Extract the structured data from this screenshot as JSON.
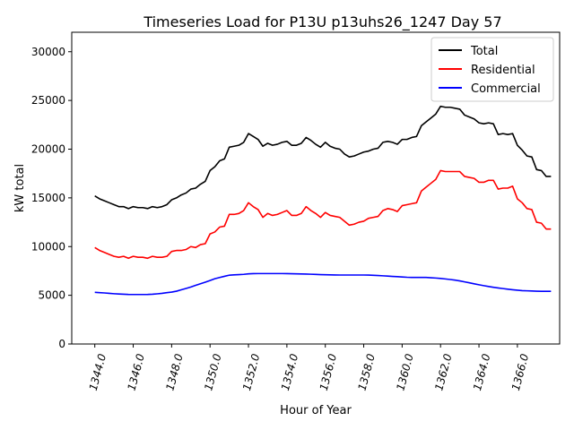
{
  "chart_data": {
    "type": "line",
    "title": "Timeseries Load for P13U p13uhs26_1247  Day 57",
    "xlabel": "Hour of Year",
    "ylabel": "kW total",
    "xlim": [
      1342.8,
      1368.2
    ],
    "ylim": [
      0,
      32000
    ],
    "xticks": [
      1344,
      1346,
      1348,
      1350,
      1352,
      1354,
      1356,
      1358,
      1360,
      1362,
      1364,
      1366
    ],
    "xtick_labels": [
      "1344.0",
      "1346.0",
      "1348.0",
      "1350.0",
      "1352.0",
      "1354.0",
      "1356.0",
      "1358.0",
      "1360.0",
      "1362.0",
      "1364.0",
      "1366.0"
    ],
    "yticks": [
      0,
      5000,
      10000,
      15000,
      20000,
      25000,
      30000
    ],
    "ytick_labels": [
      "0",
      "5000",
      "10000",
      "15000",
      "20000",
      "25000",
      "30000"
    ],
    "grid": false,
    "legend_position": "top-right",
    "x": [
      1344.0,
      1344.25,
      1344.5,
      1344.75,
      1345.0,
      1345.25,
      1345.5,
      1345.75,
      1346.0,
      1346.25,
      1346.5,
      1346.75,
      1347.0,
      1347.25,
      1347.5,
      1347.75,
      1348.0,
      1348.25,
      1348.5,
      1348.75,
      1349.0,
      1349.25,
      1349.5,
      1349.75,
      1350.0,
      1350.25,
      1350.5,
      1350.75,
      1351.0,
      1351.25,
      1351.5,
      1351.75,
      1352.0,
      1352.25,
      1352.5,
      1352.75,
      1353.0,
      1353.25,
      1353.5,
      1353.75,
      1354.0,
      1354.25,
      1354.5,
      1354.75,
      1355.0,
      1355.25,
      1355.5,
      1355.75,
      1356.0,
      1356.25,
      1356.5,
      1356.75,
      1357.0,
      1357.25,
      1357.5,
      1357.75,
      1358.0,
      1358.25,
      1358.5,
      1358.75,
      1359.0,
      1359.25,
      1359.5,
      1359.75,
      1360.0,
      1360.25,
      1360.5,
      1360.75,
      1361.0,
      1361.25,
      1361.5,
      1361.75,
      1362.0,
      1362.25,
      1362.5,
      1362.75,
      1363.0,
      1363.25,
      1363.5,
      1363.75,
      1364.0,
      1364.25,
      1364.5,
      1364.75,
      1365.0,
      1365.25,
      1365.5,
      1365.75,
      1366.0,
      1366.25,
      1366.5,
      1366.75,
      1367.0,
      1367.25,
      1367.5,
      1367.75
    ],
    "series": [
      {
        "name": "Total",
        "color": "#000000",
        "values": [
          15200,
          14900,
          14700,
          14500,
          14300,
          14100,
          14100,
          13900,
          14100,
          14000,
          14000,
          13900,
          14100,
          14000,
          14100,
          14300,
          14800,
          15000,
          15300,
          15500,
          15900,
          16000,
          16400,
          16700,
          17800,
          18200,
          18800,
          19000,
          20200,
          20300,
          20400,
          20700,
          21600,
          21300,
          21000,
          20300,
          20600,
          20400,
          20500,
          20700,
          20800,
          20400,
          20400,
          20600,
          21200,
          20900,
          20500,
          20200,
          20700,
          20300,
          20100,
          20000,
          19500,
          19200,
          19300,
          19500,
          19700,
          19800,
          20000,
          20100,
          20700,
          20800,
          20700,
          20500,
          21000,
          21000,
          21200,
          21300,
          22400,
          22800,
          23200,
          23600,
          24400,
          24300,
          24300,
          24200,
          24100,
          23500,
          23300,
          23100,
          22700,
          22600,
          22700,
          22600,
          21500,
          21600,
          21500,
          21600,
          20400,
          19900,
          19300,
          19200,
          17900,
          17800,
          17200,
          17200
        ]
      },
      {
        "name": "Residential",
        "color": "#ff0000",
        "values": [
          9900,
          9600,
          9400,
          9200,
          9000,
          8900,
          9000,
          8800,
          9000,
          8900,
          8900,
          8800,
          9000,
          8900,
          8900,
          9000,
          9500,
          9600,
          9600,
          9700,
          10000,
          9900,
          10200,
          10300,
          11300,
          11500,
          12000,
          12100,
          13300,
          13300,
          13400,
          13700,
          14500,
          14100,
          13800,
          13000,
          13400,
          13200,
          13300,
          13500,
          13700,
          13200,
          13200,
          13400,
          14100,
          13700,
          13400,
          13000,
          13500,
          13200,
          13100,
          13000,
          12600,
          12200,
          12300,
          12500,
          12600,
          12900,
          13000,
          13100,
          13700,
          13900,
          13800,
          13600,
          14200,
          14300,
          14400,
          14500,
          15700,
          16100,
          16500,
          16900,
          17800,
          17700,
          17700,
          17700,
          17700,
          17200,
          17100,
          17000,
          16600,
          16600,
          16800,
          16800,
          15900,
          16000,
          16000,
          16200,
          14900,
          14500,
          13900,
          13800,
          12500,
          12400,
          11800,
          11800
        ]
      },
      {
        "name": "Commercial",
        "color": "#0000ff",
        "values": [
          5300,
          5270,
          5240,
          5200,
          5160,
          5130,
          5110,
          5090,
          5080,
          5080,
          5080,
          5090,
          5110,
          5150,
          5200,
          5270,
          5330,
          5420,
          5560,
          5700,
          5850,
          6020,
          6180,
          6340,
          6520,
          6700,
          6830,
          6950,
          7060,
          7100,
          7120,
          7150,
          7200,
          7220,
          7230,
          7230,
          7230,
          7230,
          7230,
          7230,
          7220,
          7210,
          7200,
          7190,
          7180,
          7160,
          7140,
          7120,
          7110,
          7100,
          7090,
          7080,
          7080,
          7080,
          7080,
          7080,
          7080,
          7070,
          7050,
          7030,
          7000,
          6970,
          6940,
          6910,
          6880,
          6850,
          6830,
          6830,
          6840,
          6830,
          6800,
          6770,
          6730,
          6680,
          6620,
          6560,
          6480,
          6380,
          6280,
          6180,
          6080,
          5990,
          5900,
          5820,
          5750,
          5690,
          5630,
          5570,
          5520,
          5480,
          5460,
          5440,
          5420,
          5410,
          5410,
          5410
        ]
      }
    ]
  }
}
